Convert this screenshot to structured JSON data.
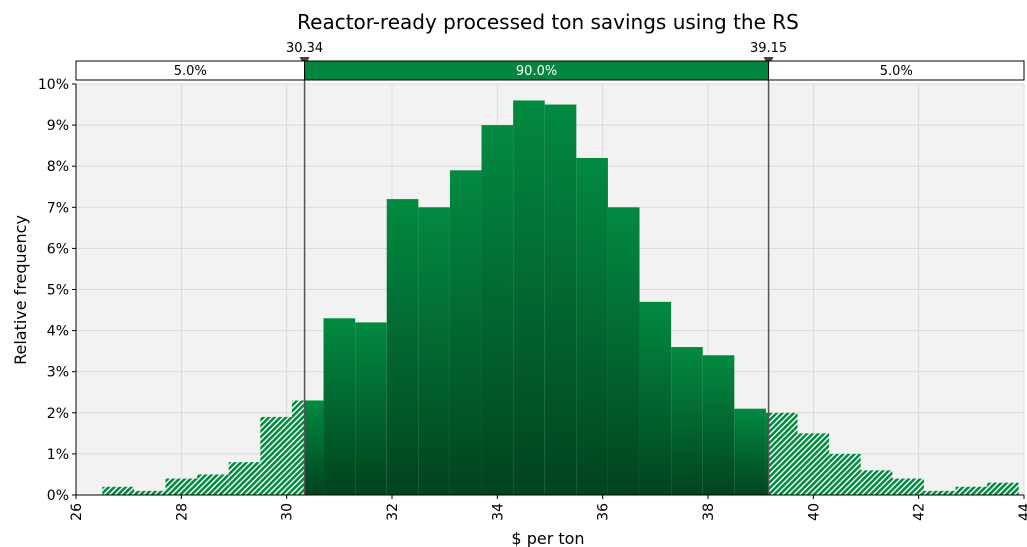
{
  "chart_data": {
    "type": "bar",
    "title": "Reactor-ready processed ton savings using the RS",
    "xlabel": "$ per ton",
    "ylabel": "Relative frequency",
    "xlim": [
      26,
      44
    ],
    "ylim": [
      0,
      10
    ],
    "x_ticks": [
      "26",
      "28",
      "30",
      "32",
      "34",
      "36",
      "38",
      "40",
      "42",
      "44"
    ],
    "y_ticks": [
      "0%",
      "1%",
      "2%",
      "3%",
      "4%",
      "5%",
      "6%",
      "7%",
      "8%",
      "9%",
      "10%"
    ],
    "bin_width": 0.6,
    "bins": [
      {
        "start": 26.5,
        "value": 0.2
      },
      {
        "start": 27.1,
        "value": 0.1
      },
      {
        "start": 27.7,
        "value": 0.4
      },
      {
        "start": 28.3,
        "value": 0.5
      },
      {
        "start": 28.9,
        "value": 0.8
      },
      {
        "start": 29.5,
        "value": 1.9
      },
      {
        "start": 30.1,
        "value": 2.3
      },
      {
        "start": 30.7,
        "value": 4.3
      },
      {
        "start": 31.3,
        "value": 4.2
      },
      {
        "start": 31.9,
        "value": 7.2
      },
      {
        "start": 32.5,
        "value": 7.0
      },
      {
        "start": 33.1,
        "value": 7.9
      },
      {
        "start": 33.7,
        "value": 9.0
      },
      {
        "start": 34.3,
        "value": 9.6
      },
      {
        "start": 34.9,
        "value": 9.5
      },
      {
        "start": 35.5,
        "value": 8.2
      },
      {
        "start": 36.1,
        "value": 7.0
      },
      {
        "start": 36.7,
        "value": 4.7
      },
      {
        "start": 37.3,
        "value": 3.6
      },
      {
        "start": 37.9,
        "value": 3.4
      },
      {
        "start": 38.5,
        "value": 2.1
      },
      {
        "start": 39.1,
        "value": 2.0
      },
      {
        "start": 39.7,
        "value": 1.5
      },
      {
        "start": 40.3,
        "value": 1.0
      },
      {
        "start": 40.9,
        "value": 0.6
      },
      {
        "start": 41.5,
        "value": 0.4
      },
      {
        "start": 42.1,
        "value": 0.1
      },
      {
        "start": 42.7,
        "value": 0.2
      },
      {
        "start": 43.3,
        "value": 0.3
      }
    ],
    "markers": {
      "left": {
        "value": 30.34,
        "label": "30.34"
      },
      "right": {
        "value": 39.15,
        "label": "39.15"
      }
    },
    "band": {
      "left_label": "5.0%",
      "middle_label": "90.0%",
      "right_label": "5.0%"
    },
    "grid": true,
    "colors": {
      "bar_top": "#028a40",
      "bar_bottom": "#01431f",
      "band_fill": "#02863f",
      "plot_bg": "#f2f2f2",
      "grid": "#d9d9d9",
      "marker_line": "#555555"
    }
  }
}
